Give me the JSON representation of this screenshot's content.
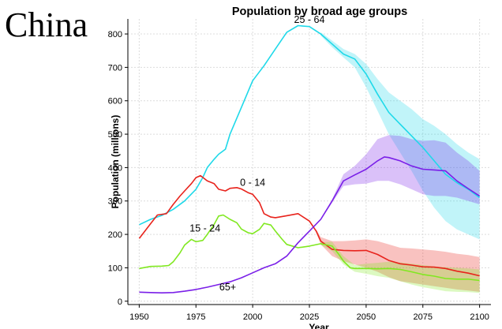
{
  "country": "China",
  "chart_data": {
    "type": "line",
    "title": "Population by broad age groups",
    "xlabel": "Year",
    "ylabel": "Population (millions)",
    "xlim": [
      1945,
      2105
    ],
    "ylim": [
      -10,
      845
    ],
    "xticks": [
      1950,
      1975,
      2000,
      2025,
      2050,
      2075,
      2100
    ],
    "yticks": [
      0,
      100,
      200,
      300,
      400,
      500,
      600,
      700,
      800
    ],
    "grid": true,
    "series": [
      {
        "name": "25 - 64",
        "color": "#1fd9e9",
        "points": [
          [
            1950,
            229
          ],
          [
            1955,
            245
          ],
          [
            1960,
            257
          ],
          [
            1965,
            275
          ],
          [
            1970,
            300
          ],
          [
            1975,
            335
          ],
          [
            1978,
            370
          ],
          [
            1980,
            400
          ],
          [
            1983,
            425
          ],
          [
            1985,
            440
          ],
          [
            1988,
            455
          ],
          [
            1990,
            500
          ],
          [
            1995,
            580
          ],
          [
            2000,
            660
          ],
          [
            2005,
            705
          ],
          [
            2010,
            755
          ],
          [
            2015,
            805
          ],
          [
            2020,
            825
          ],
          [
            2025,
            822
          ],
          [
            2030,
            800
          ],
          [
            2035,
            770
          ],
          [
            2040,
            740
          ],
          [
            2045,
            725
          ],
          [
            2050,
            680
          ],
          [
            2055,
            620
          ],
          [
            2060,
            565
          ],
          [
            2065,
            530
          ],
          [
            2070,
            495
          ],
          [
            2075,
            460
          ],
          [
            2080,
            420
          ],
          [
            2085,
            380
          ],
          [
            2090,
            355
          ],
          [
            2095,
            335
          ],
          [
            2100,
            310
          ]
        ],
        "band": {
          "lower": [
            [
              2030,
              795
            ],
            [
              2035,
              760
            ],
            [
              2040,
              730
            ],
            [
              2045,
              700
            ],
            [
              2050,
              640
            ],
            [
              2055,
              570
            ],
            [
              2060,
              500
            ],
            [
              2065,
              445
            ],
            [
              2070,
              390
            ],
            [
              2075,
              330
            ],
            [
              2080,
              280
            ],
            [
              2085,
              240
            ],
            [
              2090,
              215
            ],
            [
              2095,
              200
            ],
            [
              2100,
              185
            ]
          ],
          "upper": [
            [
              2030,
              805
            ],
            [
              2035,
              780
            ],
            [
              2040,
              755
            ],
            [
              2045,
              740
            ],
            [
              2050,
              710
            ],
            [
              2055,
              665
            ],
            [
              2060,
              625
            ],
            [
              2065,
              600
            ],
            [
              2070,
              575
            ],
            [
              2075,
              545
            ],
            [
              2080,
              525
            ],
            [
              2085,
              500
            ],
            [
              2090,
              470
            ],
            [
              2095,
              445
            ],
            [
              2100,
              425
            ]
          ]
        }
      },
      {
        "name": "0 - 14",
        "color": "#e8231c",
        "points": [
          [
            1950,
            188
          ],
          [
            1955,
            232
          ],
          [
            1958,
            258
          ],
          [
            1962,
            262
          ],
          [
            1965,
            290
          ],
          [
            1968,
            315
          ],
          [
            1970,
            330
          ],
          [
            1973,
            352
          ],
          [
            1975,
            370
          ],
          [
            1977,
            376
          ],
          [
            1980,
            360
          ],
          [
            1983,
            352
          ],
          [
            1985,
            335
          ],
          [
            1988,
            330
          ],
          [
            1990,
            338
          ],
          [
            1993,
            340
          ],
          [
            1995,
            336
          ],
          [
            1998,
            325
          ],
          [
            2000,
            320
          ],
          [
            2003,
            295
          ],
          [
            2005,
            262
          ],
          [
            2008,
            252
          ],
          [
            2010,
            250
          ],
          [
            2015,
            256
          ],
          [
            2020,
            262
          ],
          [
            2025,
            240
          ],
          [
            2028,
            210
          ],
          [
            2030,
            180
          ],
          [
            2035,
            155
          ],
          [
            2040,
            152
          ],
          [
            2045,
            151
          ],
          [
            2050,
            152
          ],
          [
            2055,
            140
          ],
          [
            2060,
            122
          ],
          [
            2065,
            112
          ],
          [
            2070,
            108
          ],
          [
            2075,
            103
          ],
          [
            2080,
            102
          ],
          [
            2085,
            98
          ],
          [
            2090,
            90
          ],
          [
            2095,
            84
          ],
          [
            2100,
            76
          ]
        ],
        "band": {
          "lower": [
            [
              2028,
              205
            ],
            [
              2030,
              170
            ],
            [
              2035,
              135
            ],
            [
              2040,
              120
            ],
            [
              2045,
              110
            ],
            [
              2050,
              100
            ],
            [
              2055,
              88
            ],
            [
              2060,
              72
            ],
            [
              2065,
              60
            ],
            [
              2070,
              55
            ],
            [
              2075,
              50
            ],
            [
              2080,
              45
            ],
            [
              2085,
              40
            ],
            [
              2090,
              35
            ],
            [
              2095,
              32
            ],
            [
              2100,
              28
            ]
          ],
          "upper": [
            [
              2028,
              215
            ],
            [
              2030,
              192
            ],
            [
              2035,
              180
            ],
            [
              2040,
              180
            ],
            [
              2045,
              182
            ],
            [
              2050,
              185
            ],
            [
              2055,
              180
            ],
            [
              2060,
              170
            ],
            [
              2065,
              160
            ],
            [
              2070,
              158
            ],
            [
              2075,
              155
            ],
            [
              2080,
              152
            ],
            [
              2085,
              148
            ],
            [
              2090,
              142
            ],
            [
              2095,
              138
            ],
            [
              2100,
              132
            ]
          ]
        }
      },
      {
        "name": "15 - 24",
        "color": "#80e820",
        "points": [
          [
            1950,
            98
          ],
          [
            1955,
            104
          ],
          [
            1960,
            105
          ],
          [
            1963,
            107
          ],
          [
            1965,
            118
          ],
          [
            1968,
            145
          ],
          [
            1970,
            168
          ],
          [
            1973,
            185
          ],
          [
            1975,
            178
          ],
          [
            1978,
            182
          ],
          [
            1980,
            200
          ],
          [
            1983,
            230
          ],
          [
            1985,
            255
          ],
          [
            1987,
            258
          ],
          [
            1990,
            245
          ],
          [
            1993,
            235
          ],
          [
            1995,
            216
          ],
          [
            1998,
            205
          ],
          [
            2000,
            202
          ],
          [
            2003,
            215
          ],
          [
            2005,
            233
          ],
          [
            2008,
            228
          ],
          [
            2010,
            210
          ],
          [
            2013,
            185
          ],
          [
            2015,
            170
          ],
          [
            2020,
            160
          ],
          [
            2025,
            165
          ],
          [
            2030,
            172
          ],
          [
            2035,
            165
          ],
          [
            2038,
            140
          ],
          [
            2040,
            120
          ],
          [
            2043,
            100
          ],
          [
            2045,
            98
          ],
          [
            2050,
            98
          ],
          [
            2055,
            97
          ],
          [
            2060,
            98
          ],
          [
            2065,
            95
          ],
          [
            2070,
            88
          ],
          [
            2075,
            80
          ],
          [
            2080,
            75
          ],
          [
            2085,
            68
          ],
          [
            2090,
            66
          ],
          [
            2095,
            66
          ],
          [
            2100,
            62
          ]
        ],
        "band": {
          "lower": [
            [
              2030,
              168
            ],
            [
              2035,
              150
            ],
            [
              2040,
              110
            ],
            [
              2045,
              88
            ],
            [
              2050,
              82
            ],
            [
              2055,
              75
            ],
            [
              2060,
              70
            ],
            [
              2065,
              60
            ],
            [
              2070,
              50
            ],
            [
              2075,
              42
            ],
            [
              2080,
              36
            ],
            [
              2085,
              30
            ],
            [
              2090,
              28
            ],
            [
              2095,
              27
            ],
            [
              2100,
              25
            ]
          ],
          "upper": [
            [
              2030,
              176
            ],
            [
              2035,
              178
            ],
            [
              2040,
              135
            ],
            [
              2045,
              108
            ],
            [
              2050,
              112
            ],
            [
              2055,
              115
            ],
            [
              2060,
              118
            ],
            [
              2065,
              116
            ],
            [
              2070,
              112
            ],
            [
              2075,
              108
            ],
            [
              2080,
              104
            ],
            [
              2085,
              102
            ],
            [
              2090,
              100
            ],
            [
              2095,
              98
            ],
            [
              2100,
              95
            ]
          ]
        }
      },
      {
        "name": "65+",
        "color": "#7a1fe8",
        "points": [
          [
            1950,
            27
          ],
          [
            1955,
            26
          ],
          [
            1960,
            25
          ],
          [
            1965,
            26
          ],
          [
            1970,
            30
          ],
          [
            1975,
            35
          ],
          [
            1980,
            42
          ],
          [
            1985,
            50
          ],
          [
            1990,
            58
          ],
          [
            1995,
            70
          ],
          [
            2000,
            85
          ],
          [
            2005,
            100
          ],
          [
            2010,
            112
          ],
          [
            2015,
            135
          ],
          [
            2020,
            175
          ],
          [
            2025,
            210
          ],
          [
            2030,
            245
          ],
          [
            2035,
            300
          ],
          [
            2040,
            360
          ],
          [
            2045,
            378
          ],
          [
            2050,
            395
          ],
          [
            2055,
            420
          ],
          [
            2058,
            432
          ],
          [
            2060,
            430
          ],
          [
            2065,
            420
          ],
          [
            2070,
            405
          ],
          [
            2075,
            395
          ],
          [
            2080,
            393
          ],
          [
            2085,
            390
          ],
          [
            2090,
            360
          ],
          [
            2095,
            337
          ],
          [
            2100,
            315
          ]
        ],
        "band": {
          "lower": [
            [
              2030,
              243
            ],
            [
              2035,
              295
            ],
            [
              2040,
              345
            ],
            [
              2045,
              350
            ],
            [
              2050,
              352
            ],
            [
              2055,
              360
            ],
            [
              2060,
              360
            ],
            [
              2065,
              350
            ],
            [
              2070,
              335
            ],
            [
              2075,
              320
            ],
            [
              2080,
              315
            ],
            [
              2085,
              315
            ],
            [
              2090,
              310
            ],
            [
              2095,
              300
            ],
            [
              2100,
              290
            ]
          ],
          "upper": [
            [
              2030,
              247
            ],
            [
              2035,
              305
            ],
            [
              2040,
              380
            ],
            [
              2045,
              405
            ],
            [
              2050,
              440
            ],
            [
              2055,
              485
            ],
            [
              2060,
              497
            ],
            [
              2065,
              495
            ],
            [
              2070,
              485
            ],
            [
              2075,
              480
            ],
            [
              2080,
              482
            ],
            [
              2085,
              475
            ],
            [
              2090,
              445
            ],
            [
              2095,
              420
            ],
            [
              2100,
              390
            ]
          ]
        }
      }
    ],
    "annotations": [
      {
        "text": "25 - 64",
        "x": 2025,
        "y": 833
      },
      {
        "text": "0 - 14",
        "x": 2000,
        "y": 345
      },
      {
        "text": "15 - 24",
        "x": 1979,
        "y": 208
      },
      {
        "text": "65+",
        "x": 1989,
        "y": 32
      }
    ]
  }
}
